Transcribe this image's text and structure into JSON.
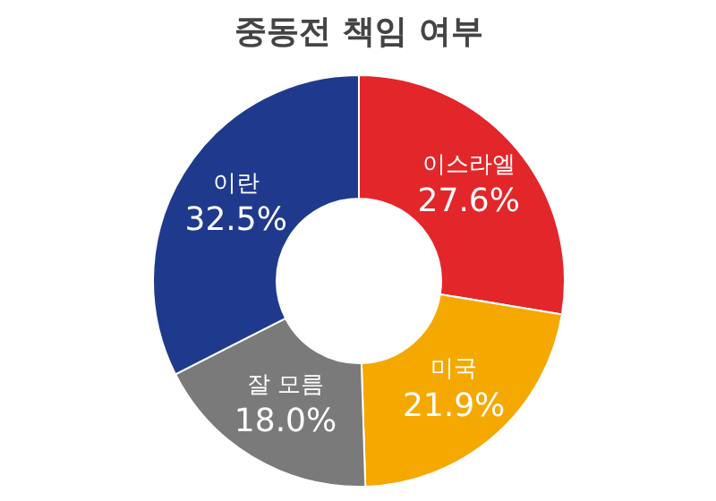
{
  "chart_data": {
    "type": "donut",
    "title": "중동전 책임 여부",
    "categories": [
      "이스라엘",
      "미국",
      "잘 모름",
      "이란"
    ],
    "values": [
      27.6,
      21.9,
      18.0,
      32.5
    ],
    "colors": [
      "#e3262a",
      "#f5a800",
      "#7a7a7a",
      "#1f3a8c"
    ],
    "value_labels": [
      "27.6%",
      "21.9%",
      "18.0%",
      "32.5%"
    ]
  }
}
